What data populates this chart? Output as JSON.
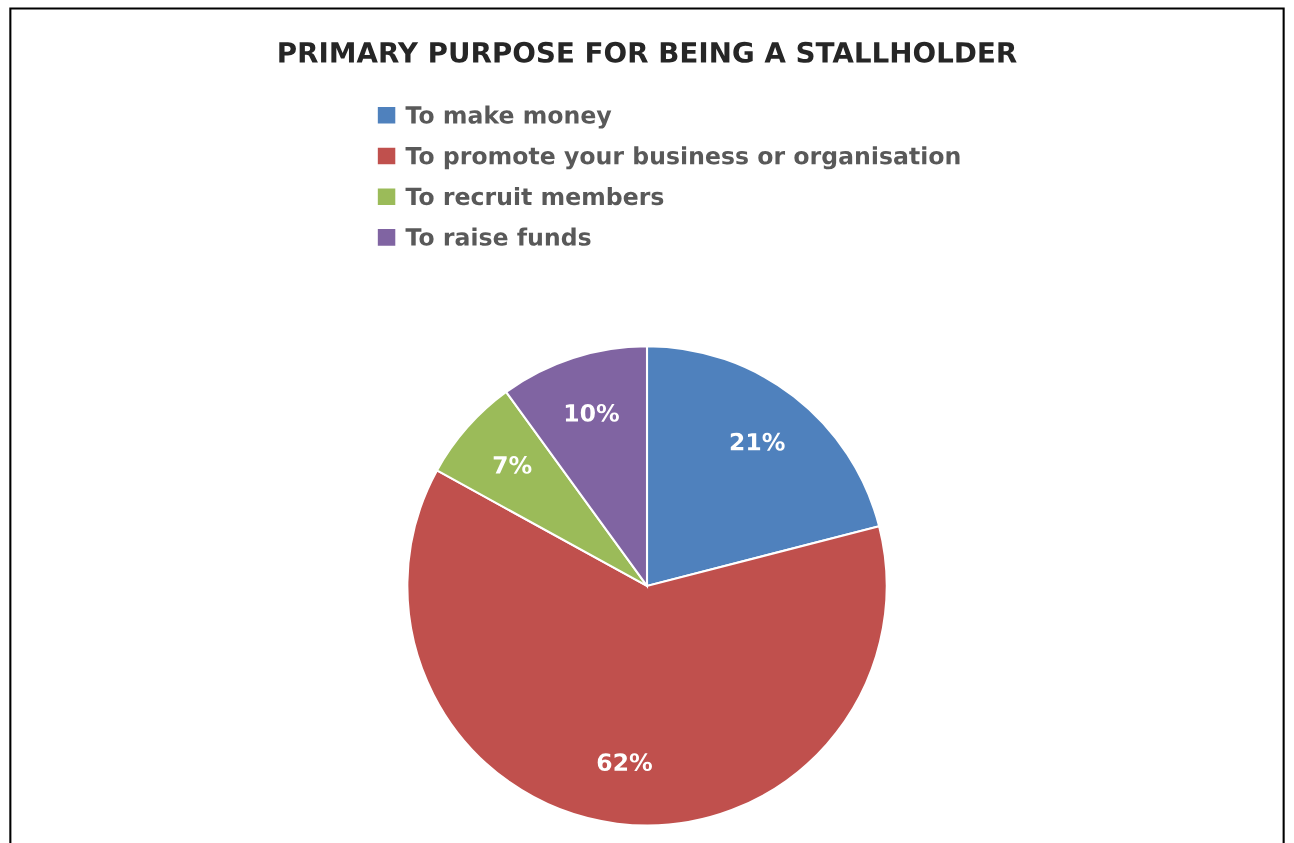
{
  "chart_data": {
    "type": "pie",
    "title": "PRIMARY PURPOSE FOR BEING A STALLHOLDER",
    "categories": [
      "To make money",
      "To promote your business or organisation",
      "To recruit members",
      "To raise funds"
    ],
    "values": [
      21,
      62,
      7,
      10
    ],
    "colors": [
      "#4f81bd",
      "#c0504d",
      "#9bbb59",
      "#8064a2"
    ],
    "value_labels": [
      "21%",
      "62%",
      "7%",
      "10%"
    ],
    "legend": "top"
  }
}
